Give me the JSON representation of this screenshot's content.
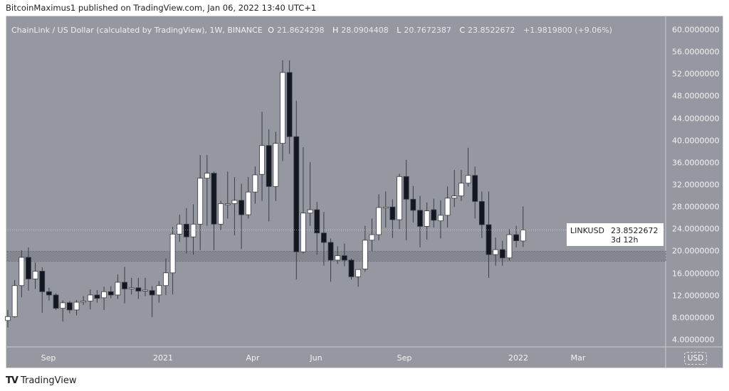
{
  "header": {
    "published": "BitcoinMaximus1 published on TradingView.com, Jan 06, 2022 13:40 UTC+1"
  },
  "legend": {
    "title": "ChainLink / US Dollar (calculated by TradingView), 1W, BINANCE",
    "o_label": "O",
    "o": "21.8624298",
    "h_label": "H",
    "h": "28.0904408",
    "l_label": "L",
    "l": "20.7672387",
    "c_label": "C",
    "c": "23.8522672",
    "change": "+1.9819800 (+9.06%)"
  },
  "currency_button": "USD",
  "price_label": {
    "symbol": "LINKUSD",
    "price": "23.8522672",
    "countdown": "3d 12h"
  },
  "colors": {
    "background": "#9598a1",
    "up": "#ffffff",
    "down": "#131722",
    "support_zone": "#7d8089"
  },
  "logo": {
    "text": "TradingView"
  },
  "chart_data": {
    "type": "candlestick",
    "interval": "1W",
    "ylim": [
      4,
      60
    ],
    "y_ticks": [
      "60.0000000",
      "56.0000000",
      "52.0000000",
      "48.0000000",
      "44.0000000",
      "40.0000000",
      "36.0000000",
      "32.0000000",
      "28.0000000",
      "24.0000000",
      "20.0000000",
      "16.0000000",
      "12.0000000",
      "8.0000000",
      "4.0000000"
    ],
    "x_ticks": [
      "Sep",
      "2021",
      "Apr",
      "Jun",
      "Sep",
      "2022",
      "Mar"
    ],
    "support_zone": [
      18.2,
      20.0
    ],
    "ohlc": [
      [
        7.5,
        9.4,
        6.2,
        8.2
      ],
      [
        8.2,
        14.8,
        8.0,
        13.8
      ],
      [
        13.8,
        20.2,
        11.7,
        18.9
      ],
      [
        18.9,
        20.7,
        12.9,
        15.0
      ],
      [
        15.0,
        18.0,
        13.2,
        16.4
      ],
      [
        16.4,
        17.1,
        8.9,
        12.7
      ],
      [
        12.7,
        13.4,
        11.1,
        12.1
      ],
      [
        12.1,
        12.4,
        9.4,
        9.7
      ],
      [
        9.7,
        11.1,
        7.3,
        10.7
      ],
      [
        10.7,
        11.0,
        8.8,
        9.4
      ],
      [
        9.4,
        11.2,
        8.4,
        10.8
      ],
      [
        10.9,
        11.9,
        10.3,
        11.0
      ],
      [
        11.0,
        13.1,
        9.5,
        12.1
      ],
      [
        12.1,
        13.0,
        10.7,
        11.5
      ],
      [
        11.6,
        13.6,
        9.4,
        12.7
      ],
      [
        12.7,
        13.7,
        11.5,
        12.1
      ],
      [
        12.1,
        15.8,
        11.4,
        14.4
      ],
      [
        14.4,
        17.2,
        10.6,
        13.2
      ],
      [
        13.4,
        15.2,
        12.2,
        13.4
      ],
      [
        13.4,
        15.2,
        11.4,
        12.8
      ],
      [
        12.9,
        15.2,
        11.9,
        13.0
      ],
      [
        12.9,
        13.7,
        8.1,
        12.1
      ],
      [
        12.1,
        14.6,
        10.7,
        13.8
      ],
      [
        13.8,
        18.7,
        12.1,
        16.1
      ],
      [
        16.1,
        24.4,
        12.2,
        23.1
      ],
      [
        23.1,
        26.6,
        21.7,
        24.9
      ],
      [
        24.9,
        27.8,
        19.6,
        22.6
      ],
      [
        22.6,
        28.5,
        19.4,
        24.9
      ],
      [
        24.9,
        37.4,
        20.2,
        33.2
      ],
      [
        33.2,
        37.4,
        24.6,
        34.1
      ],
      [
        34.1,
        34.4,
        20.2,
        24.9
      ],
      [
        24.9,
        29.1,
        23.8,
        28.6
      ],
      [
        28.6,
        34.4,
        25.9,
        28.6
      ],
      [
        28.6,
        33.4,
        22.9,
        29.2
      ],
      [
        29.2,
        32.2,
        20.4,
        26.6
      ],
      [
        26.6,
        33.4,
        25.9,
        30.7
      ],
      [
        30.7,
        35.3,
        28.6,
        33.8
      ],
      [
        33.9,
        45.2,
        29.1,
        39.1
      ],
      [
        39.1,
        42.0,
        25.4,
        31.7
      ],
      [
        31.7,
        41.6,
        29.1,
        39.5
      ],
      [
        39.5,
        54.5,
        36.3,
        52.3
      ],
      [
        52.3,
        54.5,
        37.6,
        40.7
      ],
      [
        40.7,
        47.2,
        14.9,
        19.9
      ],
      [
        19.9,
        38.8,
        19.6,
        26.9
      ],
      [
        26.9,
        36.1,
        24.6,
        27.5
      ],
      [
        27.5,
        28.9,
        19.4,
        23.3
      ],
      [
        23.3,
        27.1,
        17.4,
        21.6
      ],
      [
        21.6,
        22.3,
        14.5,
        18.4
      ],
      [
        18.4,
        20.9,
        17.7,
        19.2
      ],
      [
        19.2,
        21.4,
        17.3,
        18.4
      ],
      [
        18.4,
        18.7,
        14.9,
        15.4
      ],
      [
        15.4,
        16.7,
        13.6,
        16.7
      ],
      [
        16.8,
        24.6,
        16.3,
        22.0
      ],
      [
        22.0,
        25.9,
        20.0,
        23.0
      ],
      [
        23.0,
        30.3,
        22.0,
        27.9
      ],
      [
        28.0,
        30.8,
        24.3,
        28.0
      ],
      [
        28.0,
        29.4,
        22.4,
        25.7
      ],
      [
        25.7,
        34.0,
        24.0,
        33.5
      ],
      [
        33.5,
        36.5,
        22.0,
        29.4
      ],
      [
        29.4,
        31.8,
        25.2,
        27.4
      ],
      [
        27.4,
        30.0,
        20.7,
        24.5
      ],
      [
        24.5,
        28.8,
        22.1,
        27.3
      ],
      [
        27.5,
        29.5,
        24.3,
        25.6
      ],
      [
        25.5,
        29.2,
        22.3,
        26.5
      ],
      [
        26.5,
        31.7,
        24.3,
        29.6
      ],
      [
        29.6,
        34.7,
        28.0,
        30.0
      ],
      [
        30.0,
        34.7,
        29.1,
        32.3
      ],
      [
        32.3,
        38.7,
        31.7,
        33.7
      ],
      [
        33.7,
        35.3,
        25.9,
        29.0
      ],
      [
        29.0,
        30.8,
        22.4,
        24.8
      ],
      [
        24.8,
        30.8,
        15.2,
        19.4
      ],
      [
        19.4,
        22.5,
        17.4,
        20.3
      ],
      [
        20.3,
        21.9,
        17.4,
        18.8
      ],
      [
        18.8,
        24.0,
        18.3,
        23.0
      ],
      [
        23.0,
        24.6,
        20.7,
        21.9
      ],
      [
        21.86,
        28.09,
        20.77,
        23.85
      ]
    ]
  }
}
